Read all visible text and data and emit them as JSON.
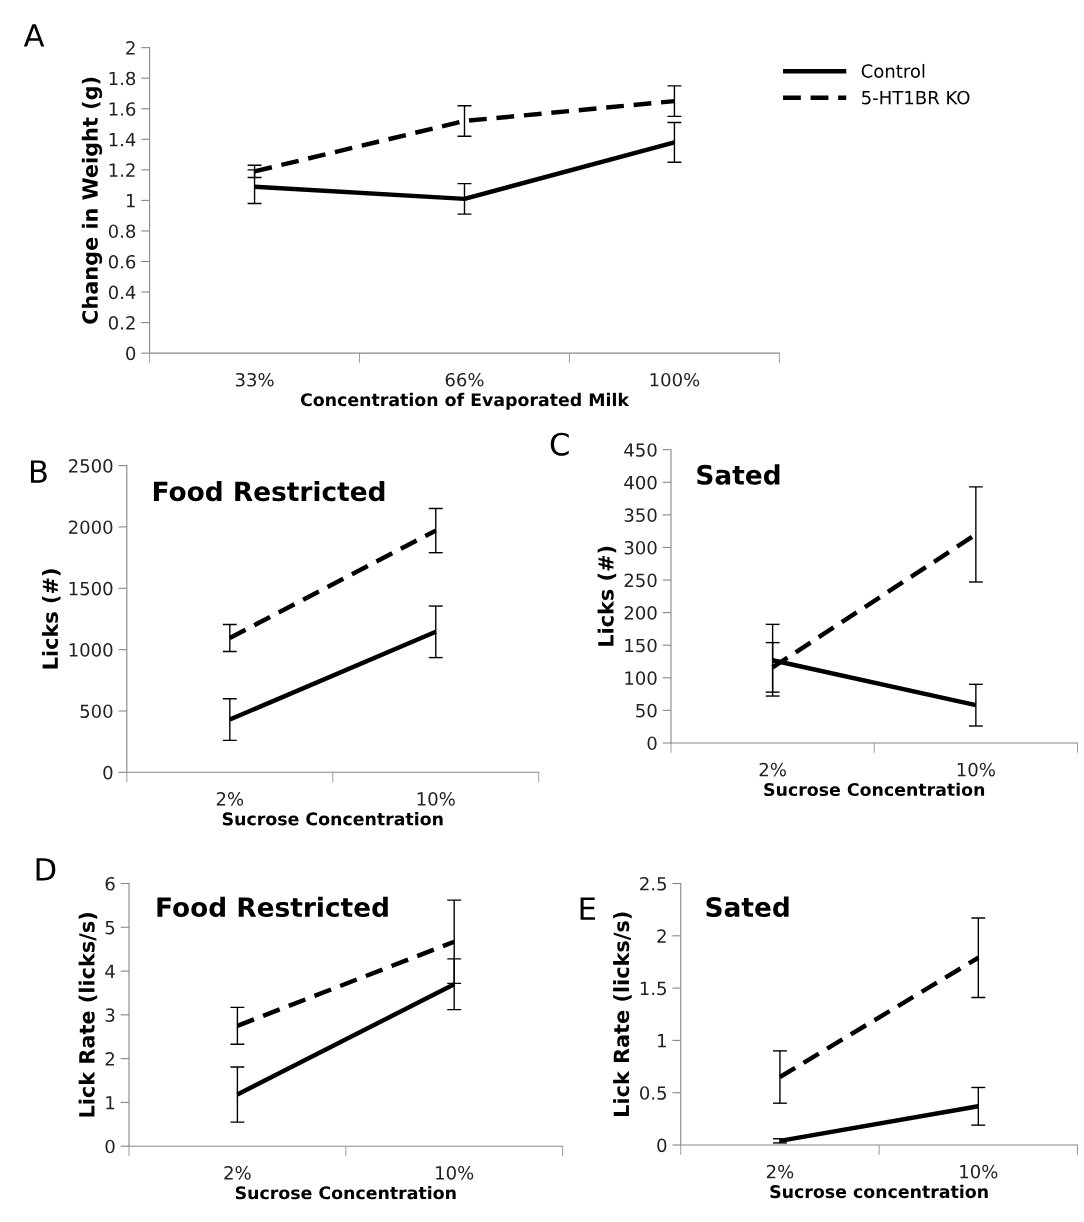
{
  "chart_data": [
    {
      "type": "line",
      "annotations": [
        "A"
      ],
      "xlabel": "Concentration of Evaporated Milk",
      "ylabel": "Change in Weight (g)",
      "categories": [
        "33%",
        "66%",
        "100%"
      ],
      "ylim": [
        0,
        2
      ],
      "yticks": [
        0,
        0.2,
        0.4,
        0.6,
        0.8,
        1,
        1.2,
        1.4,
        1.6,
        1.8,
        2
      ],
      "legend": "top right",
      "grid": false,
      "marker": "none",
      "series": [
        {
          "name": "Control",
          "color": "#000000",
          "line_style": "solid",
          "values": [
            1.09,
            1.01,
            1.38
          ],
          "errors": [
            0.11,
            0.1,
            0.13
          ]
        },
        {
          "name": "5-HT1BR KO",
          "color": "#000000",
          "line_style": "dashed",
          "values": [
            1.19,
            1.52,
            1.65
          ],
          "errors": [
            0.04,
            0.1,
            0.1
          ]
        }
      ]
    },
    {
      "type": "line",
      "title": "Food Restricted",
      "annotations": [
        "B"
      ],
      "xlabel": "Sucrose Concentration",
      "ylabel": "Licks (#)",
      "categories": [
        "2%",
        "10%"
      ],
      "ylim": [
        0,
        2500
      ],
      "yticks": [
        0,
        500,
        1000,
        1500,
        2000,
        2500
      ],
      "grid": false,
      "marker": "none",
      "series": [
        {
          "color": "#000000",
          "line_style": "solid",
          "values": [
            430,
            1145
          ],
          "errors": [
            170,
            210
          ]
        },
        {
          "color": "#000000",
          "line_style": "dashed",
          "values": [
            1095,
            1970
          ],
          "errors": [
            110,
            180
          ]
        }
      ]
    },
    {
      "type": "line",
      "title": "Sated",
      "annotations": [
        "C"
      ],
      "xlabel": "Sucrose Concentration",
      "ylabel": "Licks (#)",
      "categories": [
        "2%",
        "10%"
      ],
      "ylim": [
        0,
        450
      ],
      "yticks": [
        0,
        50,
        100,
        150,
        200,
        250,
        300,
        350,
        400,
        450
      ],
      "grid": false,
      "marker": "none",
      "series": [
        {
          "color": "#000000",
          "line_style": "solid",
          "values": [
            127,
            58
          ],
          "errors": [
            55,
            32
          ]
        },
        {
          "color": "#000000",
          "line_style": "dashed",
          "values": [
            116,
            320
          ],
          "errors": [
            38,
            73
          ]
        }
      ]
    },
    {
      "type": "line",
      "title": "Food Restricted",
      "annotations": [
        "D"
      ],
      "xlabel": "Sucrose Concentration",
      "ylabel": "Lick Rate (licks/s)",
      "categories": [
        "2%",
        "10%"
      ],
      "ylim": [
        0,
        6
      ],
      "yticks": [
        0,
        1,
        2,
        3,
        4,
        5,
        6
      ],
      "grid": false,
      "marker": "none",
      "series": [
        {
          "color": "#000000",
          "line_style": "solid",
          "values": [
            1.18,
            3.7
          ],
          "errors": [
            0.63,
            0.58
          ]
        },
        {
          "color": "#000000",
          "line_style": "dashed",
          "values": [
            2.75,
            4.67
          ],
          "errors": [
            0.42,
            0.95
          ]
        }
      ]
    },
    {
      "type": "line",
      "title": "Sated",
      "annotations": [
        "E"
      ],
      "xlabel": "Sucrose concentration",
      "ylabel": "Lick Rate (licks/s)",
      "categories": [
        "2%",
        "10%"
      ],
      "ylim": [
        0,
        2.5
      ],
      "yticks": [
        0,
        0.5,
        1,
        1.5,
        2,
        2.5
      ],
      "grid": false,
      "marker": "none",
      "series": [
        {
          "color": "#000000",
          "line_style": "solid",
          "values": [
            0.04,
            0.37
          ],
          "errors": [
            0.02,
            0.18
          ]
        },
        {
          "color": "#000000",
          "line_style": "dashed",
          "values": [
            0.65,
            1.79
          ],
          "errors": [
            0.25,
            0.38
          ]
        }
      ]
    }
  ]
}
